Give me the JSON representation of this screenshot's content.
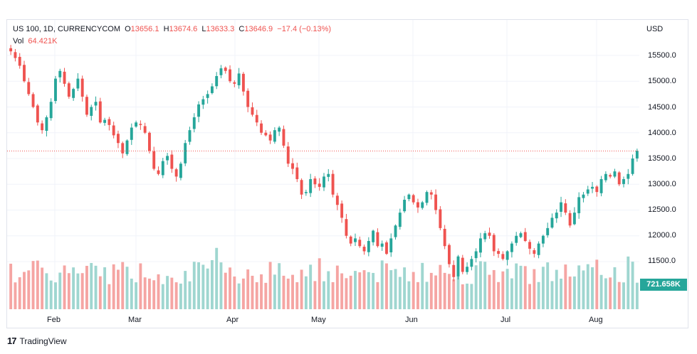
{
  "legend": {
    "symbol": "US 100, 1D, CURRENCYCOM",
    "o_label": "O",
    "o": "13656.1",
    "h_label": "H",
    "h": "13674.6",
    "l_label": "L",
    "l": "13633.3",
    "c_label": "C",
    "c": "13646.9",
    "change": "−17.4 (−0.13%)",
    "vol_label": "Vol",
    "vol": "64.421K"
  },
  "currency": "USD",
  "volume_badge": "721.658K",
  "brand": {
    "logo": "17",
    "name": "TradingView"
  },
  "colors": {
    "up": "#26a69a",
    "down": "#ef5350",
    "up_vol": "#9fd6d0",
    "down_vol": "#f5a5a3",
    "last_price_line": "#ef5350",
    "grid": "#f0f3fa"
  },
  "chart_data": {
    "type": "candlestick",
    "y_ticks": [
      "15500.0",
      "15000.0",
      "14500.0",
      "14000.0",
      "13500.0",
      "13000.0",
      "12500.0",
      "12000.0",
      "11500.0"
    ],
    "x_ticks": [
      "Feb",
      "Mar",
      "Apr",
      "May",
      "Jun",
      "Jul",
      "Aug"
    ],
    "ylim": [
      11000,
      15800
    ],
    "last_close": 13646.9,
    "close_series": [
      15580,
      15450,
      15300,
      15000,
      14750,
      14500,
      14200,
      14050,
      14300,
      14600,
      15050,
      15200,
      14950,
      14700,
      14850,
      15050,
      14700,
      14350,
      14500,
      14600,
      14200,
      14250,
      14150,
      13950,
      13800,
      13600,
      13850,
      14100,
      14200,
      14150,
      14000,
      13650,
      13300,
      13200,
      13450,
      13550,
      13300,
      13150,
      13400,
      13800,
      14050,
      14300,
      14550,
      14650,
      14750,
      14900,
      15100,
      15250,
      15200,
      15000,
      14950,
      15150,
      14800,
      14500,
      14350,
      14200,
      14000,
      13950,
      13850,
      14050,
      14100,
      13750,
      13400,
      13300,
      13100,
      12800,
      12850,
      13100,
      13000,
      12950,
      13150,
      13200,
      12800,
      12600,
      12350,
      12000,
      11850,
      11950,
      11800,
      11700,
      11900,
      12100,
      11800,
      11850,
      11650,
      11950,
      12200,
      12450,
      12700,
      12800,
      12650,
      12550,
      12650,
      12850,
      12800,
      12500,
      12150,
      11800,
      11450,
      11200,
      11600,
      11300,
      11400,
      11550,
      11700,
      11950,
      12050,
      12000,
      11700,
      11650,
      11550,
      11700,
      11850,
      12000,
      12050,
      11900,
      11750,
      11650,
      11850,
      12000,
      12150,
      12350,
      12450,
      12650,
      12450,
      12200,
      12450,
      12750,
      12800,
      12900,
      12950,
      12850,
      13100,
      13200,
      13150,
      13250,
      13000,
      13100,
      13200,
      13500,
      13650
    ]
  }
}
